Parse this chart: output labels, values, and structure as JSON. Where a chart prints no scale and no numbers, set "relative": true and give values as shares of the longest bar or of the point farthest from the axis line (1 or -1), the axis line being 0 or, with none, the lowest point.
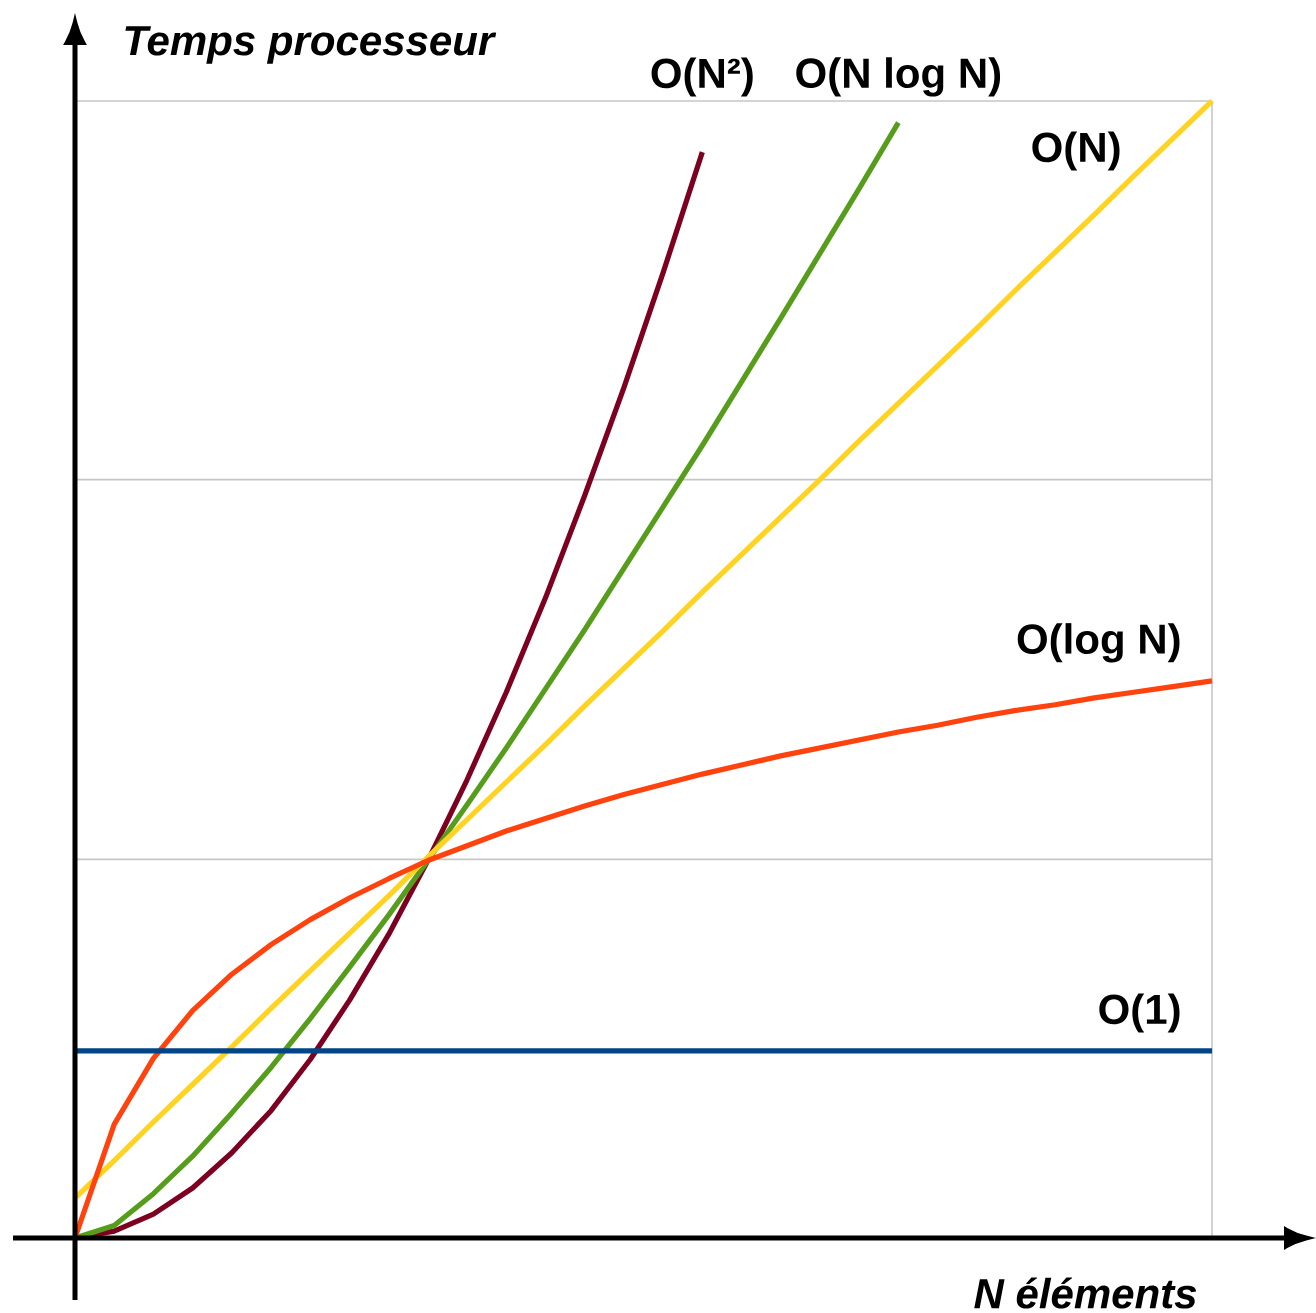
{
  "chart_data": {
    "type": "line",
    "relative": true,
    "xlabel": "N éléments",
    "ylabel": "Temps processeur",
    "line_style": "solid",
    "ref_lines": [
      {
        "axis": "y",
        "value": 0.333,
        "color": "#c6c6c6"
      },
      {
        "axis": "y",
        "value": 0.667,
        "color": "#c6c6c6"
      },
      {
        "axis": "y",
        "value": 1,
        "color": "#c6c6c6"
      }
    ],
    "categories": [
      null,
      null,
      null,
      null,
      null,
      null,
      null,
      null,
      null,
      null,
      null,
      null,
      null,
      null,
      null,
      null,
      null,
      null,
      null,
      null,
      null,
      null,
      null,
      null,
      null,
      null,
      null,
      null,
      null,
      null
    ],
    "series": [
      {
        "name": "O(N²)",
        "color": "#7e0021",
        "values": [
          0,
          0.006,
          0.021,
          0.044,
          0.075,
          0.112,
          0.157,
          0.209,
          0.267,
          0.332,
          0.403,
          0.48,
          0.563,
          0.653,
          0.748,
          0.849,
          0.955,
          null,
          null,
          null,
          null,
          null,
          null,
          null,
          null,
          null,
          null,
          null,
          null,
          null
        ]
      },
      {
        "name": "O(N log N)",
        "color": "#579d1c",
        "values": [
          0,
          0.011,
          0.039,
          0.072,
          0.11,
          0.15,
          0.193,
          0.238,
          0.284,
          0.332,
          0.381,
          0.431,
          0.483,
          0.535,
          0.589,
          0.643,
          0.697,
          0.753,
          0.809,
          0.866,
          0.923,
          0.981,
          null,
          null,
          null,
          null,
          null,
          null,
          null,
          null
        ]
      },
      {
        "name": "O(N)",
        "color": "#ffd320",
        "values": [
          0.035,
          0.068,
          0.102,
          0.135,
          0.168,
          0.202,
          0.235,
          0.268,
          0.301,
          0.335,
          0.368,
          0.401,
          0.434,
          0.468,
          0.501,
          0.534,
          0.568,
          0.601,
          0.634,
          0.667,
          0.701,
          0.734,
          0.767,
          0.8,
          0.834,
          0.867,
          0.9,
          0.934,
          0.967,
          1.0
        ]
      },
      {
        "name": "O(log N)",
        "color": "#ff420e",
        "values": [
          0,
          0.1,
          0.158,
          0.2,
          0.232,
          0.258,
          0.28,
          0.299,
          0.316,
          0.332,
          0.345,
          0.358,
          0.369,
          0.38,
          0.39,
          0.399,
          0.408,
          0.416,
          0.424,
          0.431,
          0.438,
          0.445,
          0.451,
          0.458,
          0.464,
          0.469,
          0.475,
          0.48,
          0.485,
          0.49
        ]
      },
      {
        "name": "O(1)",
        "color": "#004586",
        "values": [
          0.1645,
          0.1645,
          0.1645,
          0.1645,
          0.1645,
          0.1645,
          0.1645,
          0.1645,
          0.1645,
          0.1645,
          0.1645,
          0.1645,
          0.1645,
          0.1645,
          0.1645,
          0.1645,
          0.1645,
          0.1645,
          0.1645,
          0.1645,
          0.1645,
          0.1645,
          0.1645,
          0.1645,
          0.1645,
          0.1645,
          0.1645,
          0.1645,
          0.1645,
          0.1645
        ]
      }
    ]
  }
}
